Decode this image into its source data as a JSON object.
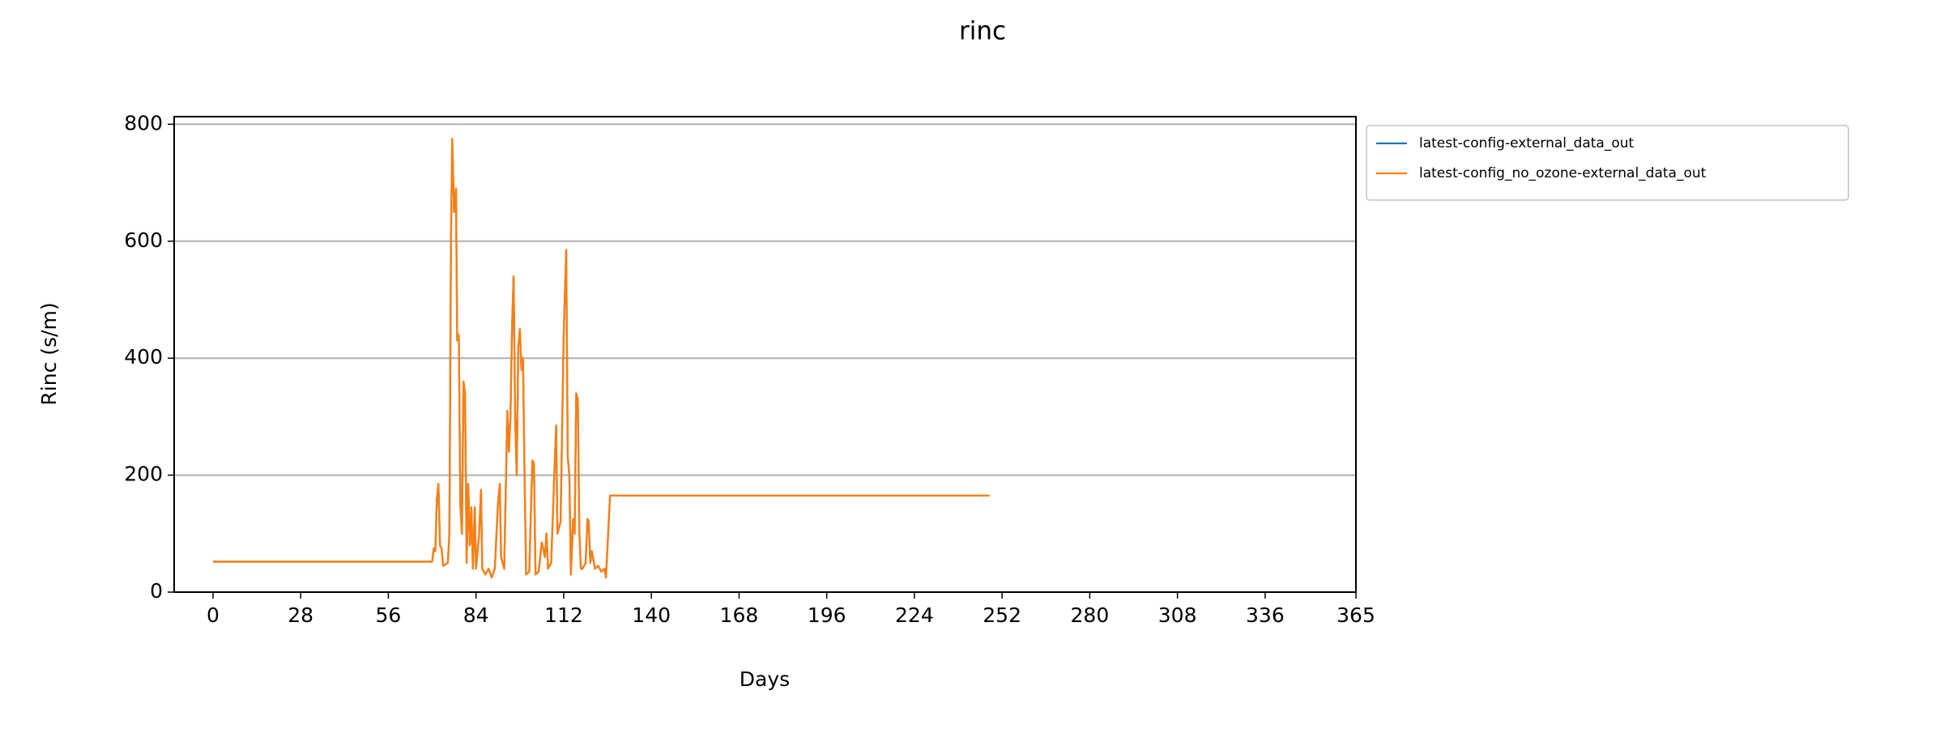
{
  "chart_data": {
    "type": "line",
    "title": "rinc",
    "xlabel": "Days",
    "ylabel": "Rinc (s/m)",
    "x": [
      0,
      70,
      70.5,
      71,
      71.5,
      72,
      72.5,
      73,
      73.5,
      75,
      75.5,
      76,
      76.4,
      77,
      77.6,
      78,
      78.5,
      79,
      79.5,
      80,
      80.5,
      81,
      81.5,
      82,
      82.5,
      83,
      83.6,
      84,
      85,
      85.6,
      86,
      87,
      88,
      89,
      90,
      91,
      91.6,
      92,
      93,
      94,
      94.5,
      95,
      95.5,
      96,
      96.5,
      97,
      97.5,
      98,
      98.5,
      99,
      99.5,
      100,
      101,
      102,
      102.5,
      103,
      104,
      105,
      106,
      106.5,
      107,
      108,
      109,
      109.6,
      110,
      111,
      112,
      112.8,
      113.3,
      113.8,
      114.3,
      115,
      115.5,
      116,
      116.5,
      117,
      117.5,
      118,
      119,
      119.6,
      120,
      120.5,
      121,
      122,
      123,
      124,
      125,
      125.5,
      126.8,
      248
    ],
    "series": [
      {
        "name": "latest-config-external_data_out",
        "color": "#1f77b4",
        "values": [
          52,
          52,
          75,
          70,
          160,
          185,
          80,
          75,
          45,
          50,
          100,
          600,
          775,
          650,
          690,
          430,
          440,
          150,
          100,
          360,
          340,
          50,
          185,
          80,
          145,
          40,
          145,
          40,
          100,
          175,
          40,
          30,
          40,
          25,
          40,
          150,
          185,
          60,
          40,
          310,
          240,
          300,
          450,
          540,
          300,
          200,
          420,
          450,
          380,
          400,
          200,
          30,
          35,
          225,
          220,
          30,
          35,
          85,
          60,
          100,
          40,
          50,
          200,
          285,
          100,
          120,
          440,
          585,
          230,
          200,
          30,
          125,
          100,
          340,
          330,
          100,
          40,
          40,
          50,
          125,
          120,
          50,
          70,
          40,
          45,
          35,
          40,
          25,
          165,
          165
        ]
      },
      {
        "name": "latest-config_no_ozone-external_data_out",
        "color": "#ff7f0e",
        "values": [
          52,
          52,
          75,
          70,
          160,
          185,
          80,
          75,
          45,
          50,
          100,
          600,
          775,
          650,
          690,
          430,
          440,
          150,
          100,
          360,
          340,
          50,
          185,
          80,
          145,
          40,
          145,
          40,
          100,
          175,
          40,
          30,
          40,
          25,
          40,
          150,
          185,
          60,
          40,
          310,
          240,
          300,
          450,
          540,
          300,
          200,
          420,
          450,
          380,
          400,
          200,
          30,
          35,
          225,
          220,
          30,
          35,
          85,
          60,
          100,
          40,
          50,
          200,
          285,
          100,
          120,
          440,
          585,
          230,
          200,
          30,
          125,
          100,
          340,
          330,
          100,
          40,
          40,
          50,
          125,
          120,
          50,
          70,
          40,
          45,
          35,
          40,
          25,
          165,
          165
        ]
      }
    ],
    "xlim": [
      -12.4,
      365
    ],
    "ylim": [
      0,
      813
    ],
    "xticks": [
      0,
      28,
      56,
      84,
      112,
      140,
      168,
      196,
      224,
      252,
      280,
      308,
      336,
      365
    ],
    "yticks": [
      0,
      200,
      400,
      600,
      800
    ],
    "grid": "y",
    "legend": "outside upper right"
  }
}
